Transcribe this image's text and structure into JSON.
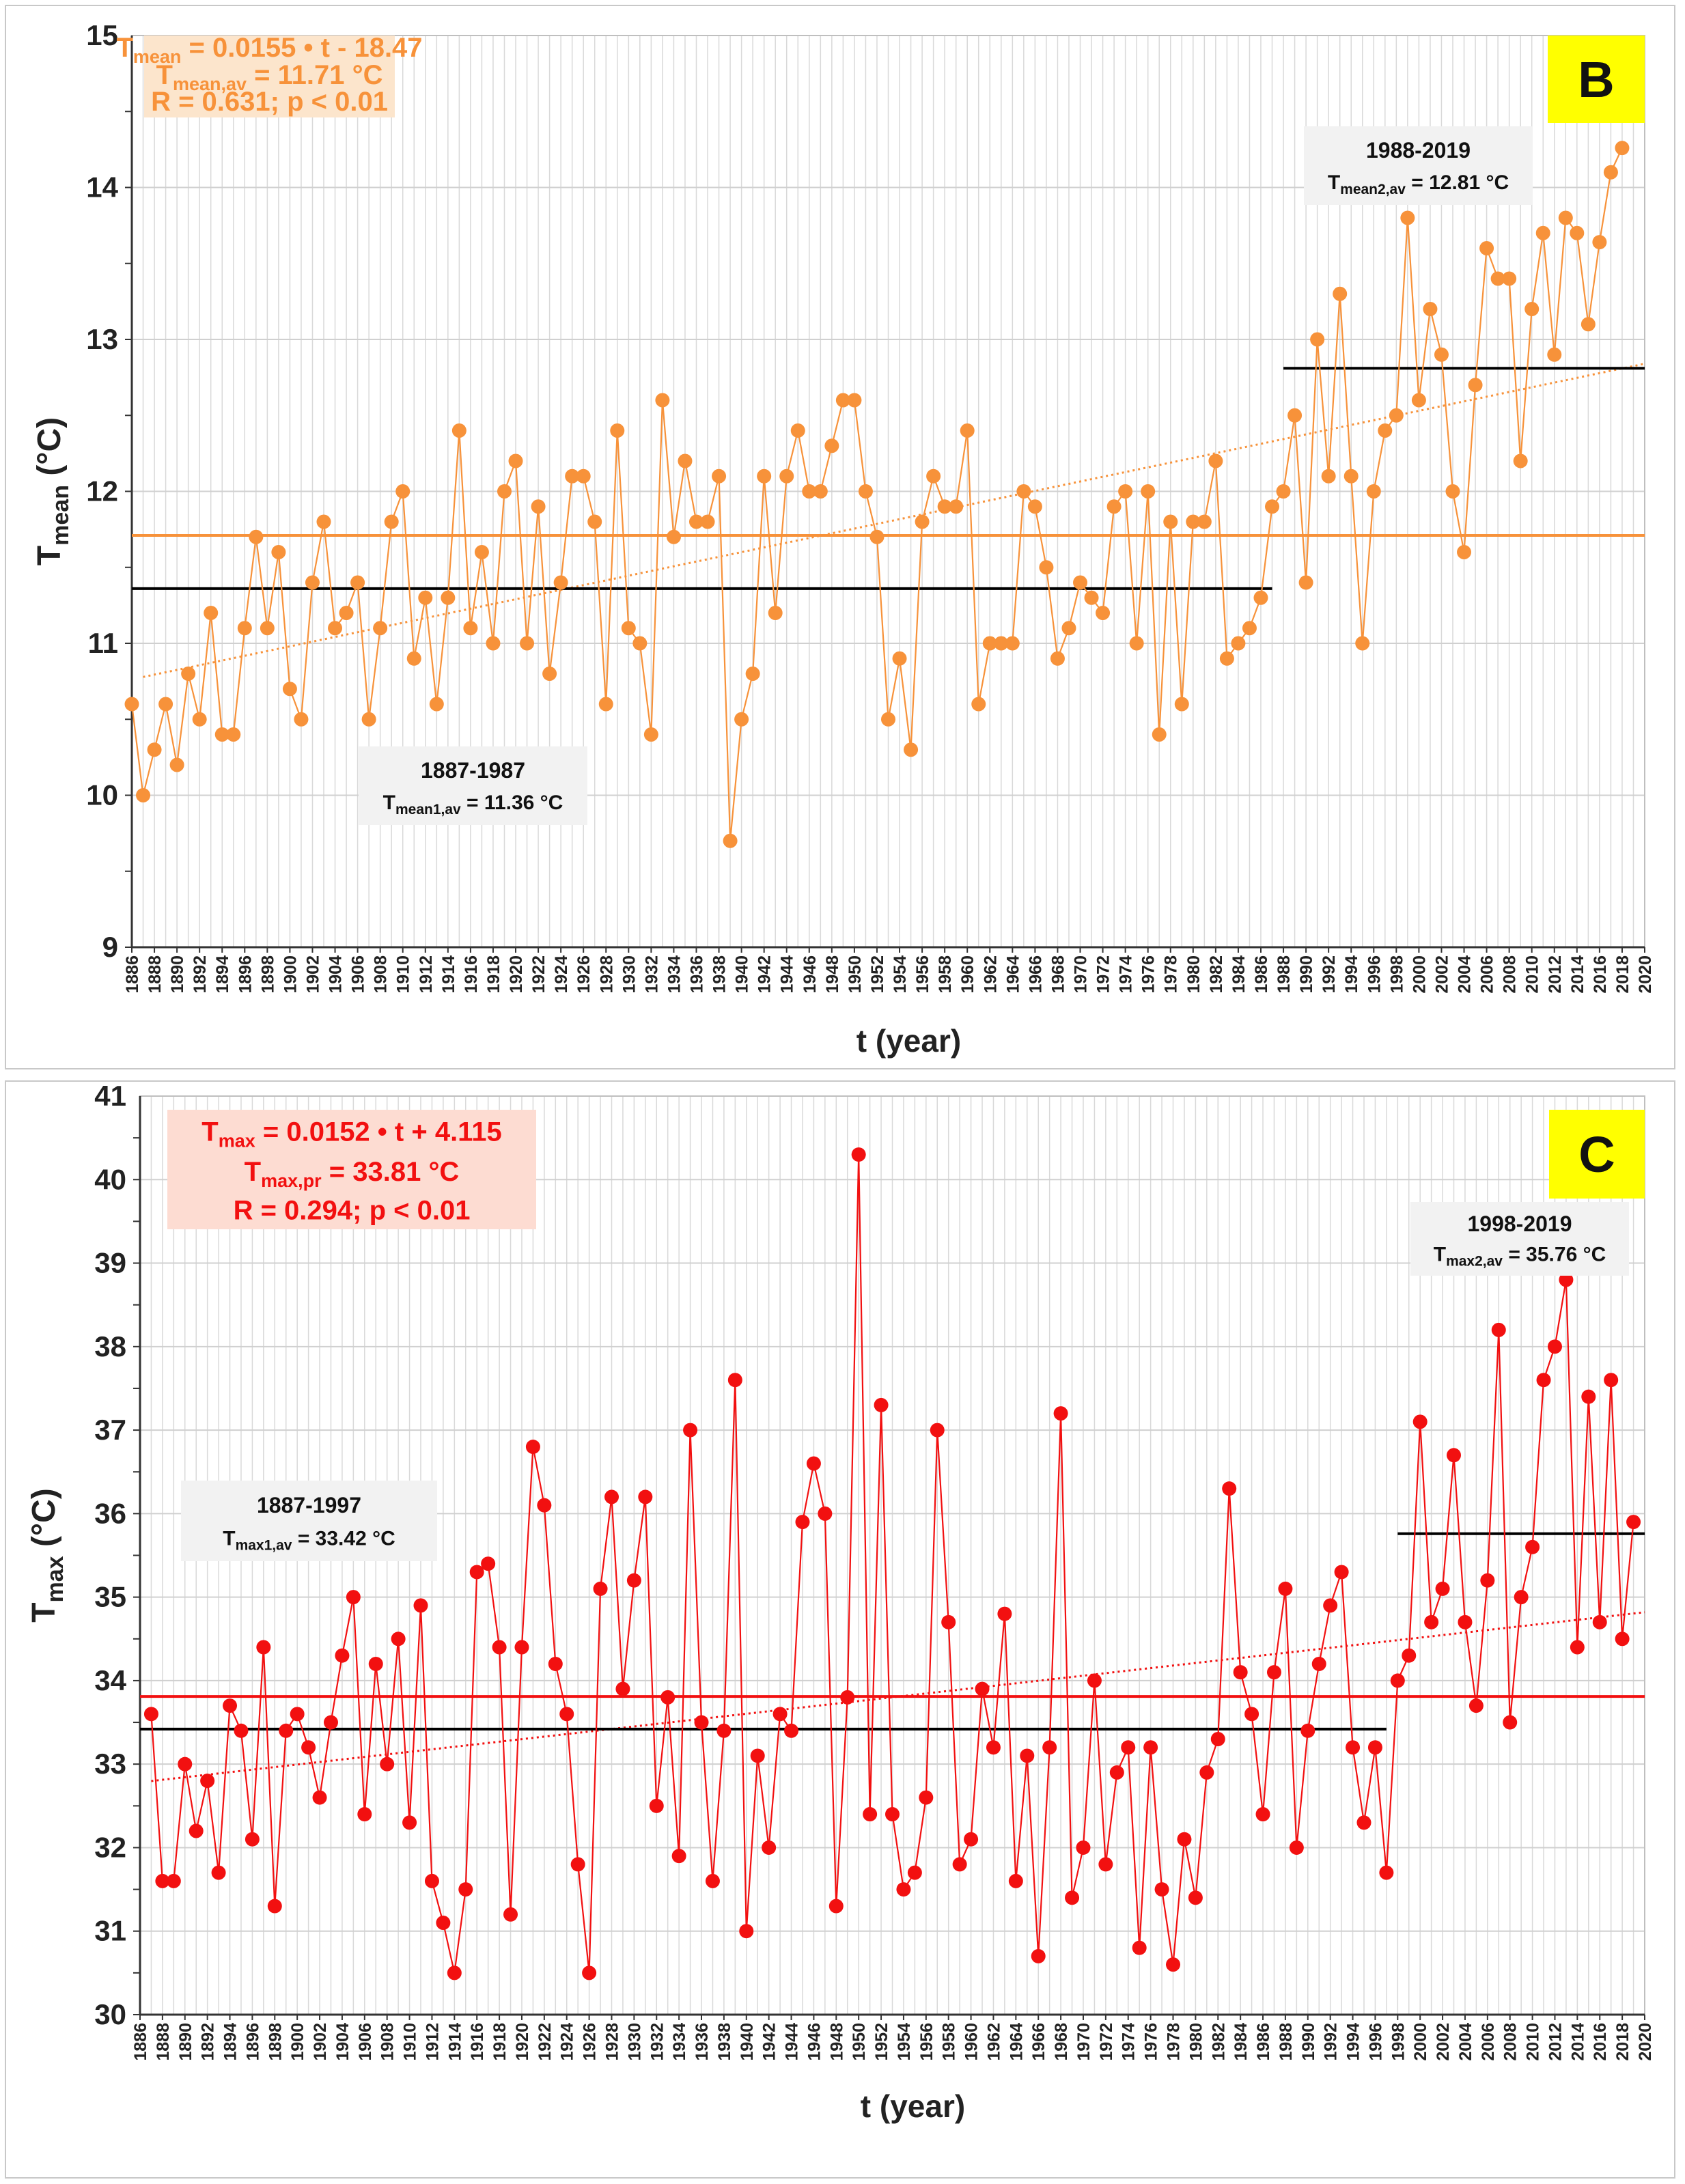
{
  "chart_data": [
    {
      "type": "line",
      "panel": "B",
      "xlabel": "t (year)",
      "ylabel_main": "T",
      "ylabel_sub": "mean",
      "ylabel_unit": " (°C)",
      "ylim": [
        9,
        15
      ],
      "ytick_step": 1,
      "xlim": [
        1886,
        2020
      ],
      "xtick_step": 2,
      "color": "#F7923A",
      "x_start": 1886,
      "values": [
        10.6,
        10.0,
        10.3,
        10.6,
        10.2,
        10.8,
        10.5,
        11.2,
        10.4,
        10.4,
        11.1,
        11.7,
        11.1,
        11.6,
        10.7,
        10.5,
        11.4,
        11.8,
        11.1,
        11.2,
        11.4,
        10.5,
        11.1,
        11.8,
        12.0,
        10.9,
        11.3,
        10.6,
        11.3,
        12.4,
        11.1,
        11.6,
        11.0,
        12.0,
        12.2,
        11.0,
        11.9,
        10.8,
        11.4,
        12.1,
        12.1,
        11.8,
        10.6,
        12.4,
        11.1,
        11.0,
        10.4,
        12.6,
        11.7,
        12.2,
        11.8,
        11.8,
        12.1,
        9.7,
        10.5,
        10.8,
        12.1,
        11.2,
        12.1,
        12.4,
        12.0,
        12.0,
        12.3,
        12.6,
        12.6,
        12.0,
        11.7,
        10.5,
        10.9,
        10.3,
        11.8,
        12.1,
        11.9,
        11.9,
        12.4,
        10.6,
        11.0,
        11.0,
        11.0,
        12.0,
        11.9,
        11.5,
        10.9,
        11.1,
        11.4,
        11.3,
        11.2,
        11.9,
        12.0,
        11.0,
        12.0,
        10.4,
        11.8,
        10.6,
        11.8,
        11.8,
        12.2,
        10.9,
        11.0,
        11.1,
        11.3,
        11.9,
        12.0,
        12.5,
        11.4,
        13.0,
        12.1,
        13.3,
        12.1,
        11.0,
        12.0,
        12.4,
        12.5,
        13.8,
        12.6,
        13.2,
        12.9,
        12.0,
        11.6,
        12.7,
        13.6,
        13.4,
        13.4,
        12.2,
        13.2,
        13.7,
        12.9,
        13.8,
        13.7,
        13.1,
        13.64,
        14.1,
        14.26
      ],
      "trend": {
        "slope": 0.0155,
        "intercept": -18.47,
        "x_range": [
          1887,
          2020
        ]
      },
      "mean_line": {
        "value": 11.71,
        "x_range": [
          1886,
          2020
        ]
      },
      "period_lines": [
        {
          "value": 11.36,
          "x_range": [
            1886,
            1987
          ]
        },
        {
          "value": 12.81,
          "x_range": [
            1988,
            2020
          ]
        }
      ],
      "equation_box": {
        "line1_main": "T",
        "line1_sub": "mean",
        "line1_rest": " = 0.0155 • t - 18.47",
        "line2_main": "T",
        "line2_sub": "mean,av",
        "line2_rest": " = 11.71 °C",
        "line3": "R = 0.631; p < 0.01",
        "bg": "#FCE5CC"
      },
      "period_boxes": [
        {
          "title": "1887-1987",
          "main": "T",
          "sub": "mean1,av",
          "rest": " = 11.36 °C"
        },
        {
          "title": "1988-2019",
          "main": "T",
          "sub": "mean2,av",
          "rest": " = 12.81 °C"
        }
      ],
      "panel_label": "B"
    },
    {
      "type": "line",
      "panel": "C",
      "xlabel": "t (year)",
      "ylabel_main": "T",
      "ylabel_sub": "max",
      "ylabel_unit": " (°C)",
      "ylim": [
        30,
        41
      ],
      "ytick_step": 1,
      "xlim": [
        1886,
        2020
      ],
      "xtick_step": 2,
      "color": "#F21010",
      "x_start": 1887,
      "values": [
        33.6,
        31.6,
        31.6,
        33.0,
        32.2,
        32.8,
        31.7,
        33.7,
        33.4,
        32.1,
        34.4,
        31.3,
        33.4,
        33.6,
        33.2,
        32.6,
        33.5,
        34.3,
        35.0,
        32.4,
        34.2,
        33.0,
        34.5,
        32.3,
        34.9,
        31.6,
        31.1,
        30.5,
        31.5,
        35.3,
        35.4,
        34.4,
        31.2,
        34.4,
        36.8,
        36.1,
        34.2,
        33.6,
        31.8,
        30.5,
        35.1,
        36.2,
        33.9,
        35.2,
        36.2,
        32.5,
        33.8,
        31.9,
        37.0,
        33.5,
        31.6,
        33.4,
        37.6,
        31.0,
        33.1,
        32.0,
        33.6,
        33.4,
        35.9,
        36.6,
        36.0,
        31.3,
        33.8,
        40.3,
        32.4,
        37.3,
        32.4,
        31.5,
        31.7,
        32.6,
        37.0,
        34.7,
        31.8,
        32.1,
        33.9,
        33.2,
        34.8,
        31.6,
        33.1,
        30.7,
        33.2,
        37.2,
        31.4,
        32.0,
        34.0,
        31.8,
        32.9,
        33.2,
        30.8,
        33.2,
        31.5,
        30.6,
        32.1,
        31.4,
        32.9,
        33.3,
        36.3,
        34.1,
        33.6,
        32.4,
        34.1,
        35.1,
        32.0,
        33.4,
        34.2,
        34.9,
        35.3,
        33.2,
        32.3,
        33.2,
        31.7,
        34.0,
        34.3,
        37.1,
        34.7,
        35.1,
        36.7,
        34.7,
        33.7,
        35.2,
        38.2,
        33.5,
        35.0,
        35.6,
        37.6,
        38.0,
        38.8,
        34.4,
        37.4,
        34.7,
        37.6,
        34.5,
        35.9
      ],
      "trend": {
        "slope": 0.0152,
        "intercept": 4.115,
        "x_range": [
          1887,
          2020
        ]
      },
      "mean_line": {
        "value": 33.81,
        "x_range": [
          1886,
          2020
        ]
      },
      "period_lines": [
        {
          "value": 33.42,
          "x_range": [
            1886,
            1997
          ]
        },
        {
          "value": 35.76,
          "x_range": [
            1998,
            2020
          ]
        }
      ],
      "equation_box": {
        "line1_main": "T",
        "line1_sub": "max",
        "line1_rest": " = 0.0152 • t + 4.115",
        "line2_main": "T",
        "line2_sub": "max,pr",
        "line2_rest": " = 33.81 °C",
        "line3": "R = 0.294; p < 0.01",
        "bg": "#FDDCD2"
      },
      "period_boxes": [
        {
          "title": "1887-1997",
          "main": "T",
          "sub": "max1,av",
          "rest": " = 33.42 °C"
        },
        {
          "title": "1998-2019",
          "main": "T",
          "sub": "max2,av",
          "rest": " = 35.76 °C"
        }
      ],
      "panel_label": "C"
    }
  ]
}
